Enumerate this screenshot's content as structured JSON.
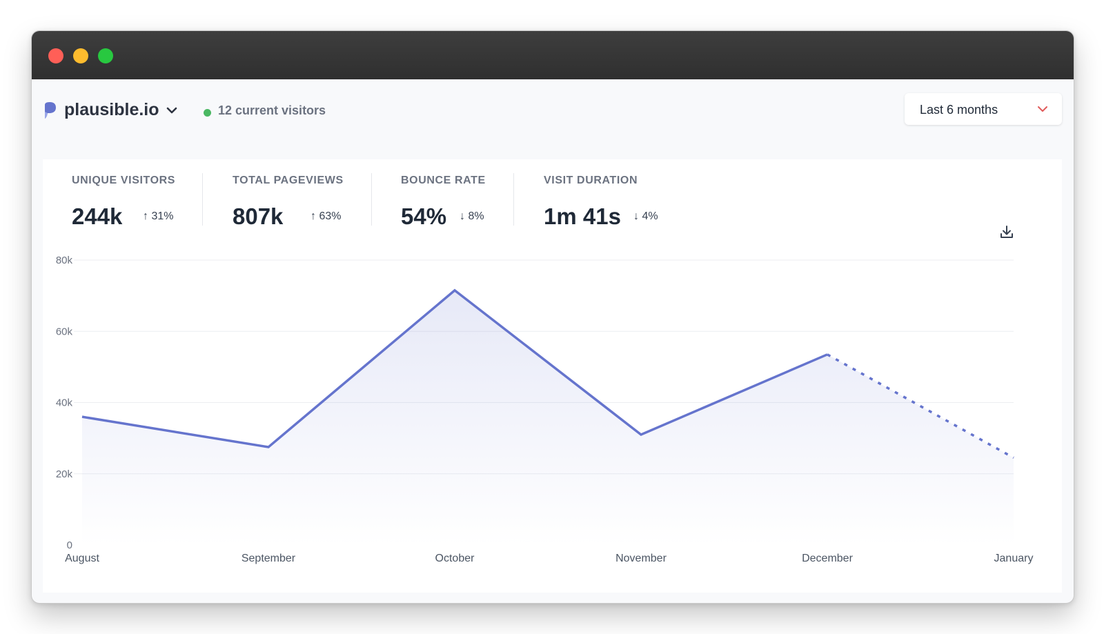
{
  "site": {
    "name": "plausible.io",
    "current_visitors": "12 current visitors"
  },
  "date_range": {
    "label": "Last 6 months"
  },
  "stats": [
    {
      "label": "UNIQUE VISITORS",
      "value": "244k",
      "change": "↑ 31%"
    },
    {
      "label": "TOTAL PAGEVIEWS",
      "value": "807k",
      "change": "↑ 63%"
    },
    {
      "label": "BOUNCE RATE",
      "value": "54%",
      "change": "↓ 8%"
    },
    {
      "label": "VISIT DURATION",
      "value": "1m 41s",
      "change": "↓ 4%"
    }
  ],
  "colors": {
    "accent": "#6574cd",
    "live": "#4ab862",
    "range_chevron": "#e05a5a"
  },
  "icons": {
    "logo": "plausible-logo-icon",
    "site_dropdown": "chevron-down-icon",
    "range_dropdown": "chevron-down-icon",
    "download": "download-icon"
  },
  "chart_data": {
    "type": "line",
    "categories": [
      "August",
      "September",
      "October",
      "November",
      "December",
      "January"
    ],
    "values": [
      36000,
      27500,
      71500,
      31000,
      53500,
      24500
    ],
    "incomplete_last_segment": true,
    "yticks": [
      "0",
      "20k",
      "40k",
      "60k",
      "80k"
    ],
    "ylim": [
      0,
      80000
    ],
    "grid": true,
    "fill": "area"
  }
}
